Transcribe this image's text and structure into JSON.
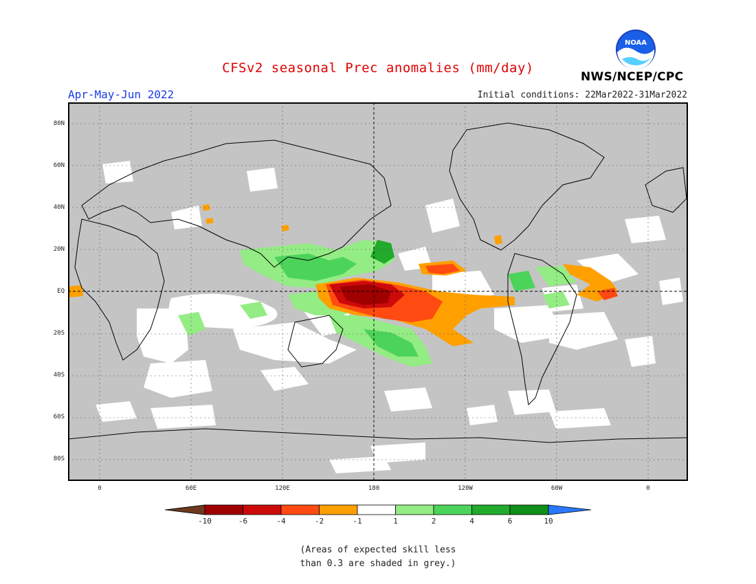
{
  "title": "CFSv2 seasonal Prec anomalies (mm/day)",
  "period": "Apr-May-Jun 2022",
  "initial_conditions": "Initial conditions: 22Mar2022-31Mar2022",
  "agency": "NWS/NCEP/CPC",
  "logo_text": "NOAA",
  "lat_labels": [
    "80N",
    "60N",
    "40N",
    "20N",
    "EQ",
    "20S",
    "40S",
    "60S",
    "80S"
  ],
  "lon_labels": [
    "0",
    "60E",
    "120E",
    "180",
    "120W",
    "60W",
    "0"
  ],
  "colorbar": {
    "labels": [
      "-10",
      "-6",
      "-4",
      "-2",
      "-1",
      "1",
      "2",
      "4",
      "6",
      "10"
    ],
    "colors": [
      "#6b3a1e",
      "#a00000",
      "#cc0a0a",
      "#ff4a12",
      "#ffa000",
      "#ffffff",
      "#94ec84",
      "#4cd45a",
      "#22aa2c",
      "#0f8e1a",
      "#2a78ff"
    ]
  },
  "map_colors": {
    "grey": "#c4c4c4",
    "land_outline": "#000000",
    "grid": "#555555"
  },
  "note_line1": "(Areas of expected skill less",
  "note_line2": "than 0.3 are shaded in grey.)"
}
